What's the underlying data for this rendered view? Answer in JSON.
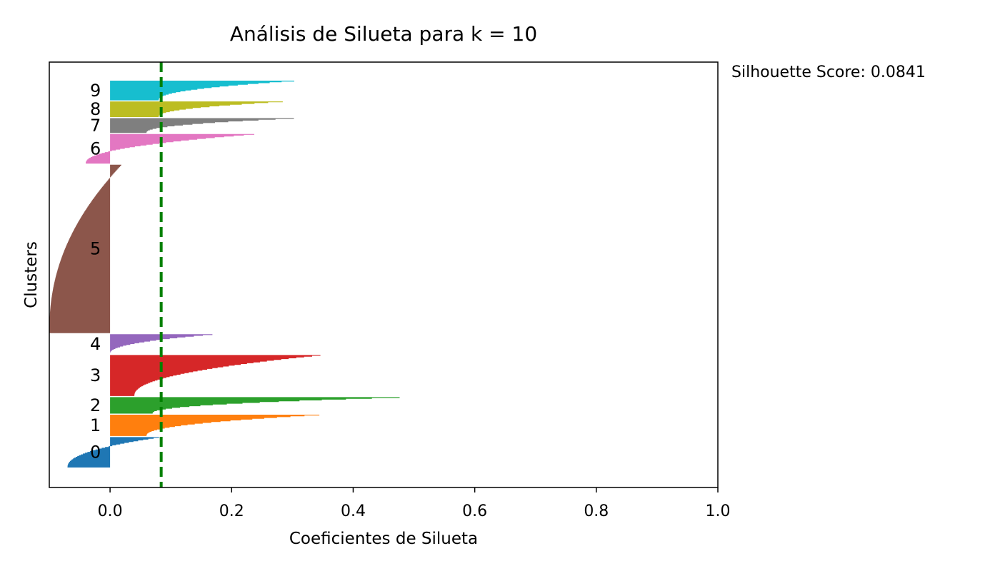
{
  "chart_data": {
    "type": "area",
    "title": "Análisis de Silueta para k = 10",
    "xlabel": "Coeficientes de Silueta",
    "ylabel": "Clusters",
    "xlim": [
      -0.1,
      1.0
    ],
    "x_ticks": [
      "0.0",
      "0.2",
      "0.4",
      "0.6",
      "0.8",
      "1.0"
    ],
    "x_tick_values": [
      0.0,
      0.2,
      0.4,
      0.6,
      0.8,
      1.0
    ],
    "average_line": 0.0841,
    "average_line_color": "#008000",
    "annotation": "Silhouette Score: 0.0841",
    "clusters": [
      {
        "label": "0",
        "color": "#1f77b4",
        "size": 37,
        "max": 0.09,
        "min": -0.07
      },
      {
        "label": "1",
        "color": "#ff7f0e",
        "size": 26,
        "max": 0.37,
        "min": 0.06
      },
      {
        "label": "2",
        "color": "#2ca02c",
        "size": 20,
        "max": 0.525,
        "min": 0.07
      },
      {
        "label": "3",
        "color": "#d62728",
        "size": 50,
        "max": 0.36,
        "min": 0.04
      },
      {
        "label": "4",
        "color": "#9467bd",
        "size": 24,
        "max": 0.185,
        "min": 0.0
      },
      {
        "label": "5",
        "color": "#8c564b",
        "size": 205,
        "max": 0.02,
        "min": -0.1
      },
      {
        "label": "6",
        "color": "#e377c2",
        "size": 36,
        "max": 0.255,
        "min": -0.04
      },
      {
        "label": "7",
        "color": "#7f7f7f",
        "size": 18,
        "max": 0.335,
        "min": 0.06
      },
      {
        "label": "8",
        "color": "#bcbd22",
        "size": 19,
        "max": 0.31,
        "min": 0.08
      },
      {
        "label": "9",
        "color": "#17becf",
        "size": 24,
        "max": 0.325,
        "min": 0.08
      }
    ]
  }
}
